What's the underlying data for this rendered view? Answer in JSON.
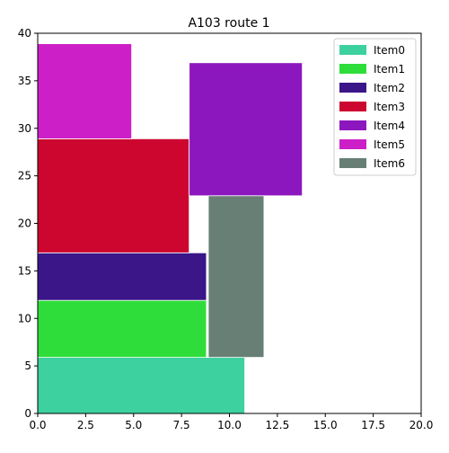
{
  "chart_data": {
    "type": "bar",
    "subtype": "packing-rectangles",
    "title": "A103 route 1",
    "xlabel": "",
    "ylabel": "",
    "xlim": [
      0,
      20
    ],
    "ylim": [
      0,
      40
    ],
    "xticks": [
      0,
      2.5,
      5,
      7.5,
      10,
      12.5,
      15,
      17.5,
      20
    ],
    "xtick_labels": [
      "0.0",
      "2.5",
      "5.0",
      "7.5",
      "10.0",
      "12.5",
      "15.0",
      "17.5",
      "20.0"
    ],
    "yticks": [
      0,
      5,
      10,
      15,
      20,
      25,
      30,
      35,
      40
    ],
    "ytick_labels": [
      "0",
      "5",
      "10",
      "15",
      "20",
      "25",
      "30",
      "35",
      "40"
    ],
    "grid": false,
    "legend_position": "top-right",
    "series": [
      {
        "name": "Item0",
        "color": "#3dd1a0",
        "x": 0,
        "y": 0,
        "width": 10.8,
        "height": 5.9
      },
      {
        "name": "Item1",
        "color": "#2fdd3a",
        "x": 0,
        "y": 5.9,
        "width": 8.8,
        "height": 6.0
      },
      {
        "name": "Item2",
        "color": "#3a1688",
        "x": 0,
        "y": 11.9,
        "width": 8.8,
        "height": 5.0
      },
      {
        "name": "Item3",
        "color": "#cc062e",
        "x": 0,
        "y": 16.9,
        "width": 7.9,
        "height": 12.0
      },
      {
        "name": "Item4",
        "color": "#8d17be",
        "x": 7.9,
        "y": 22.9,
        "width": 5.9,
        "height": 14.0
      },
      {
        "name": "Item5",
        "color": "#cd1fc7",
        "x": 0,
        "y": 28.9,
        "width": 4.9,
        "height": 10.0
      },
      {
        "name": "Item6",
        "color": "#677f75",
        "x": 8.9,
        "y": 5.9,
        "width": 2.9,
        "height": 17.0
      }
    ]
  }
}
